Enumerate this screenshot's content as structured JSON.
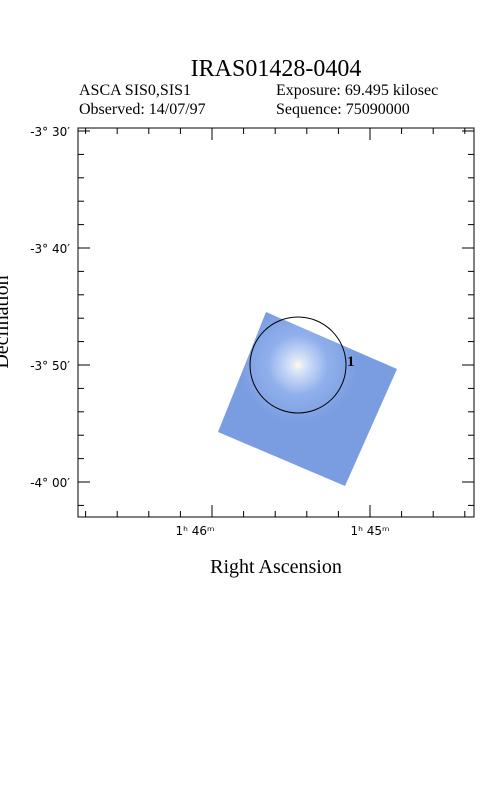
{
  "header": {
    "title": "IRAS01428-0404",
    "instrument": "ASCA SIS0,SIS1",
    "exposure": "Exposure: 69.495 kilosec",
    "observed": "Observed: 14/07/97",
    "sequence": "Sequence: 75090000"
  },
  "axes": {
    "x_label": "Right Ascension",
    "y_label": "Declination",
    "x_ticks": [
      "1ʰ 46ᵐ",
      "1ʰ 45ᵐ"
    ],
    "y_ticks": [
      "-3° 30′",
      "-3° 40′",
      "-3° 50′",
      "-4° 00′"
    ]
  },
  "sources": [
    {
      "label": "1"
    }
  ]
}
